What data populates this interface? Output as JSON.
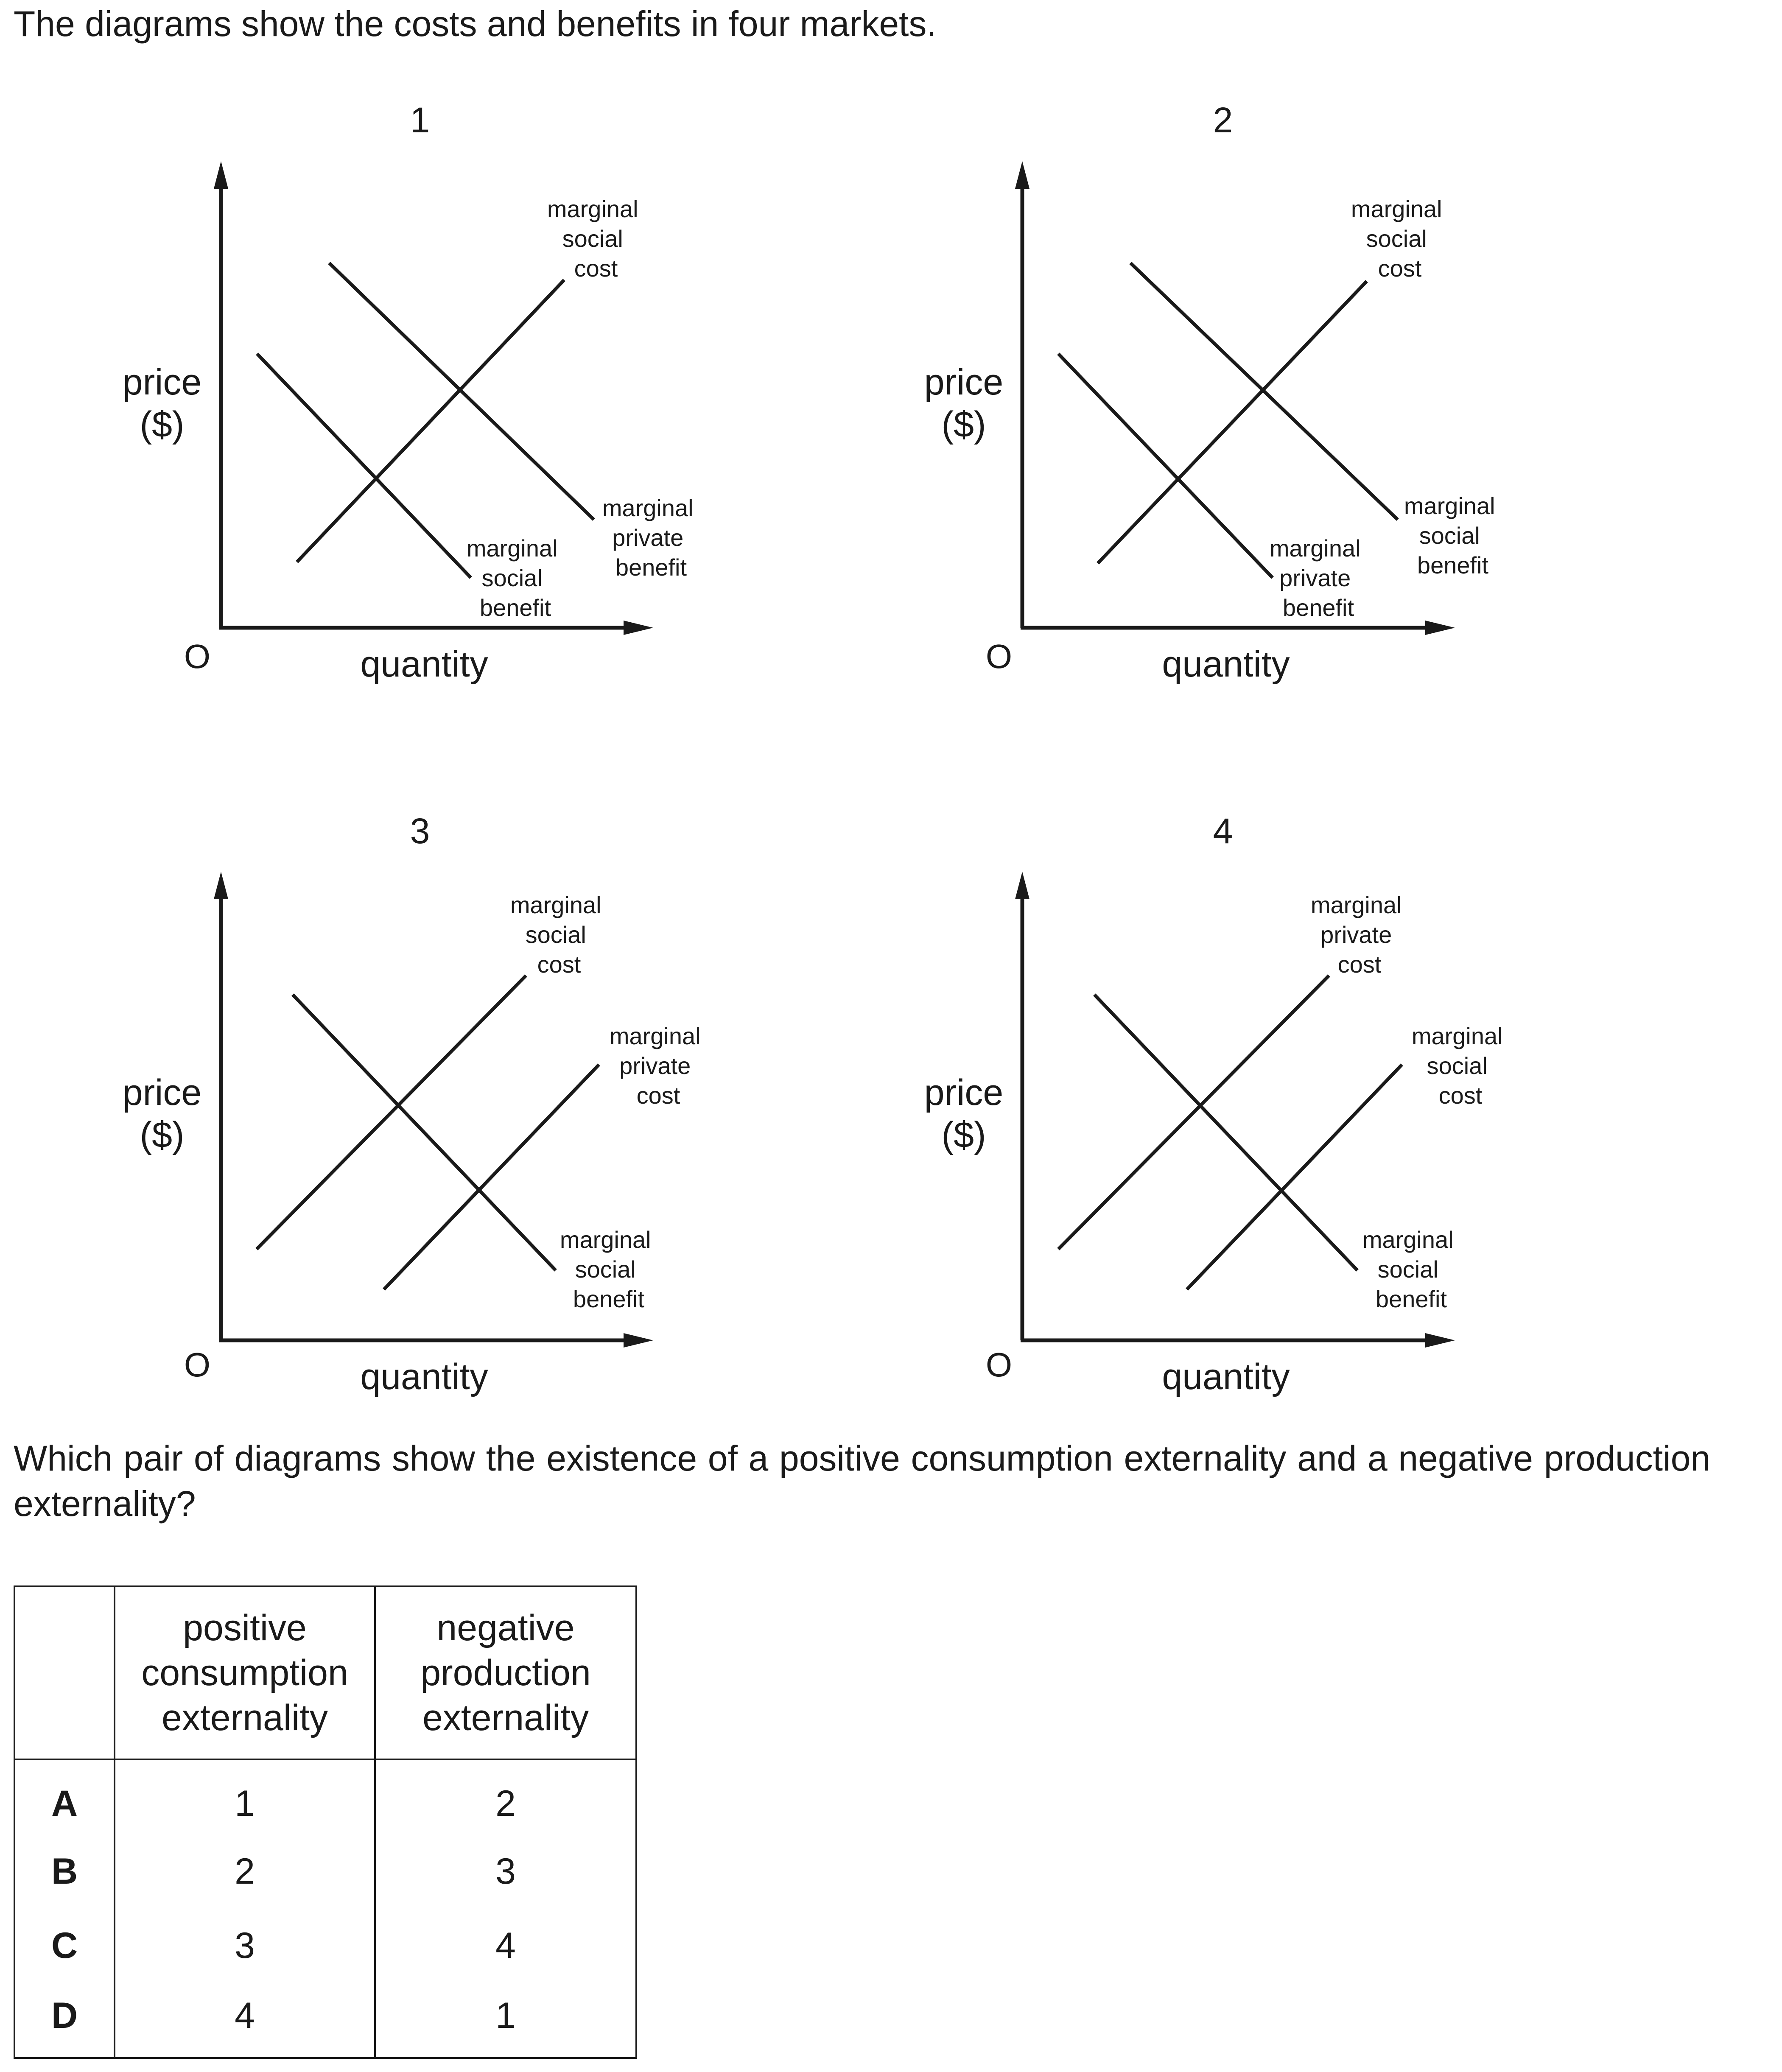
{
  "intro_text": "The diagrams show the costs and benefits in four markets.",
  "axis_labels": {
    "y_line1": "price",
    "y_line2": "($)",
    "x": "quantity",
    "origin": "O"
  },
  "diagrams": [
    {
      "number": "1",
      "lines": [
        {
          "label": [
            "marginal",
            "social",
            "cost"
          ],
          "slope": "upward"
        },
        {
          "label": [
            "marginal",
            "private",
            "benefit"
          ],
          "slope": "downward"
        },
        {
          "label": [
            "marginal",
            "social",
            "benefit"
          ],
          "slope": "downward"
        }
      ]
    },
    {
      "number": "2",
      "lines": [
        {
          "label": [
            "marginal",
            "social",
            "cost"
          ],
          "slope": "upward"
        },
        {
          "label": [
            "marginal",
            "social",
            "benefit"
          ],
          "slope": "downward"
        },
        {
          "label": [
            "marginal",
            "private",
            "benefit"
          ],
          "slope": "downward"
        }
      ]
    },
    {
      "number": "3",
      "lines": [
        {
          "label": [
            "marginal",
            "social",
            "cost"
          ],
          "slope": "upward"
        },
        {
          "label": [
            "marginal",
            "private",
            "cost"
          ],
          "slope": "upward"
        },
        {
          "label": [
            "marginal",
            "social",
            "benefit"
          ],
          "slope": "downward"
        }
      ]
    },
    {
      "number": "4",
      "lines": [
        {
          "label": [
            "marginal",
            "private",
            "cost"
          ],
          "slope": "upward"
        },
        {
          "label": [
            "marginal",
            "social",
            "cost"
          ],
          "slope": "upward"
        },
        {
          "label": [
            "marginal",
            "social",
            "benefit"
          ],
          "slope": "downward"
        }
      ]
    }
  ],
  "question_text": "Which pair of diagrams show the existence of a positive consumption externality and a negative production externality?",
  "table": {
    "headers": {
      "col1": [
        "positive",
        "consumption",
        "externality"
      ],
      "col2": [
        "negative",
        "production",
        "externality"
      ]
    },
    "rows": [
      {
        "key": "A",
        "positive": "1",
        "negative": "2"
      },
      {
        "key": "B",
        "positive": "2",
        "negative": "3"
      },
      {
        "key": "C",
        "positive": "3",
        "negative": "4"
      },
      {
        "key": "D",
        "positive": "4",
        "negative": "1"
      }
    ]
  }
}
